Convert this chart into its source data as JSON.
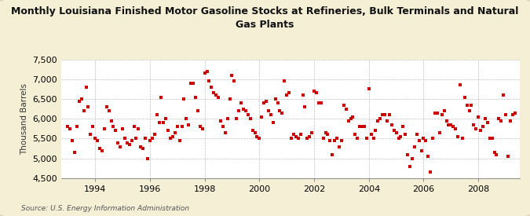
{
  "title": "Monthly Louisiana Finished Motor Gasoline Stocks at Refineries, Bulk Terminals and Natural\nGas Plants",
  "ylabel": "Thousand Barrels",
  "source": "Source: U.S. Energy Information Administration",
  "background_color": "#f5efd6",
  "plot_background_color": "#ffffff",
  "marker_color": "#cc0000",
  "ylim": [
    4500,
    7500
  ],
  "yticks": [
    4500,
    5000,
    5500,
    6000,
    6500,
    7000,
    7500
  ],
  "xlim_start": 1992.75,
  "xlim_end": 2009.5,
  "xtick_years": [
    1994,
    1996,
    1998,
    2000,
    2002,
    2004,
    2006,
    2008
  ],
  "data": [
    [
      1993.0,
      5800
    ],
    [
      1993.083,
      5750
    ],
    [
      1993.167,
      5450
    ],
    [
      1993.25,
      5150
    ],
    [
      1993.333,
      5800
    ],
    [
      1993.417,
      6450
    ],
    [
      1993.5,
      6500
    ],
    [
      1993.583,
      6200
    ],
    [
      1993.667,
      6800
    ],
    [
      1993.75,
      6300
    ],
    [
      1993.833,
      5600
    ],
    [
      1993.917,
      5800
    ],
    [
      1994.0,
      5500
    ],
    [
      1994.083,
      5450
    ],
    [
      1994.167,
      5250
    ],
    [
      1994.25,
      5200
    ],
    [
      1994.333,
      5750
    ],
    [
      1994.417,
      6300
    ],
    [
      1994.5,
      6200
    ],
    [
      1994.583,
      5950
    ],
    [
      1994.667,
      5800
    ],
    [
      1994.75,
      5700
    ],
    [
      1994.833,
      5400
    ],
    [
      1994.917,
      5300
    ],
    [
      1995.0,
      5750
    ],
    [
      1995.083,
      5500
    ],
    [
      1995.167,
      5400
    ],
    [
      1995.25,
      5350
    ],
    [
      1995.333,
      5450
    ],
    [
      1995.417,
      5800
    ],
    [
      1995.5,
      5500
    ],
    [
      1995.583,
      5750
    ],
    [
      1995.667,
      5300
    ],
    [
      1995.75,
      5250
    ],
    [
      1995.833,
      5500
    ],
    [
      1995.917,
      5000
    ],
    [
      1996.0,
      5450
    ],
    [
      1996.083,
      5500
    ],
    [
      1996.167,
      5600
    ],
    [
      1996.25,
      6100
    ],
    [
      1996.333,
      5900
    ],
    [
      1996.417,
      6550
    ],
    [
      1996.5,
      5900
    ],
    [
      1996.583,
      6000
    ],
    [
      1996.667,
      5700
    ],
    [
      1996.75,
      5500
    ],
    [
      1996.833,
      5550
    ],
    [
      1996.917,
      5650
    ],
    [
      1997.0,
      5800
    ],
    [
      1997.083,
      5450
    ],
    [
      1997.167,
      5800
    ],
    [
      1997.25,
      6500
    ],
    [
      1997.333,
      6000
    ],
    [
      1997.417,
      5850
    ],
    [
      1997.5,
      6900
    ],
    [
      1997.583,
      6900
    ],
    [
      1997.667,
      6550
    ],
    [
      1997.75,
      6200
    ],
    [
      1997.833,
      5800
    ],
    [
      1997.917,
      5750
    ],
    [
      1998.0,
      7150
    ],
    [
      1998.083,
      7200
    ],
    [
      1998.167,
      6950
    ],
    [
      1998.25,
      6800
    ],
    [
      1998.333,
      6650
    ],
    [
      1998.417,
      6600
    ],
    [
      1998.5,
      6550
    ],
    [
      1998.583,
      5950
    ],
    [
      1998.667,
      5800
    ],
    [
      1998.75,
      5650
    ],
    [
      1998.833,
      6000
    ],
    [
      1998.917,
      6500
    ],
    [
      1999.0,
      7100
    ],
    [
      1999.083,
      6950
    ],
    [
      1999.167,
      6000
    ],
    [
      1999.25,
      6200
    ],
    [
      1999.333,
      6400
    ],
    [
      1999.417,
      6250
    ],
    [
      1999.5,
      6200
    ],
    [
      1999.583,
      6100
    ],
    [
      1999.667,
      6000
    ],
    [
      1999.75,
      5700
    ],
    [
      1999.833,
      5650
    ],
    [
      1999.917,
      5550
    ],
    [
      2000.0,
      5500
    ],
    [
      2000.083,
      6050
    ],
    [
      2000.167,
      6400
    ],
    [
      2000.25,
      6450
    ],
    [
      2000.333,
      6200
    ],
    [
      2000.417,
      6100
    ],
    [
      2000.5,
      5900
    ],
    [
      2000.583,
      6500
    ],
    [
      2000.667,
      6400
    ],
    [
      2000.75,
      6200
    ],
    [
      2000.833,
      6150
    ],
    [
      2000.917,
      6950
    ],
    [
      2001.0,
      6600
    ],
    [
      2001.083,
      6650
    ],
    [
      2001.167,
      5500
    ],
    [
      2001.25,
      5600
    ],
    [
      2001.333,
      5550
    ],
    [
      2001.417,
      5500
    ],
    [
      2001.5,
      5600
    ],
    [
      2001.583,
      6600
    ],
    [
      2001.667,
      6300
    ],
    [
      2001.75,
      5500
    ],
    [
      2001.833,
      5550
    ],
    [
      2001.917,
      5650
    ],
    [
      2002.0,
      6700
    ],
    [
      2002.083,
      6650
    ],
    [
      2002.167,
      6400
    ],
    [
      2002.25,
      6400
    ],
    [
      2002.333,
      5500
    ],
    [
      2002.417,
      5650
    ],
    [
      2002.5,
      5600
    ],
    [
      2002.583,
      5450
    ],
    [
      2002.667,
      5100
    ],
    [
      2002.75,
      5450
    ],
    [
      2002.833,
      5500
    ],
    [
      2002.917,
      5300
    ],
    [
      2003.0,
      5450
    ],
    [
      2003.083,
      6350
    ],
    [
      2003.167,
      6250
    ],
    [
      2003.25,
      5950
    ],
    [
      2003.333,
      6000
    ],
    [
      2003.417,
      6050
    ],
    [
      2003.5,
      5600
    ],
    [
      2003.583,
      5500
    ],
    [
      2003.667,
      5800
    ],
    [
      2003.75,
      5800
    ],
    [
      2003.833,
      5800
    ],
    [
      2003.917,
      5500
    ],
    [
      2004.0,
      6750
    ],
    [
      2004.083,
      5600
    ],
    [
      2004.167,
      5500
    ],
    [
      2004.25,
      5700
    ],
    [
      2004.333,
      5950
    ],
    [
      2004.417,
      6000
    ],
    [
      2004.5,
      6100
    ],
    [
      2004.583,
      6100
    ],
    [
      2004.667,
      5950
    ],
    [
      2004.75,
      6100
    ],
    [
      2004.833,
      5850
    ],
    [
      2004.917,
      5700
    ],
    [
      2005.0,
      5650
    ],
    [
      2005.083,
      5500
    ],
    [
      2005.167,
      5550
    ],
    [
      2005.25,
      5800
    ],
    [
      2005.333,
      5600
    ],
    [
      2005.417,
      5100
    ],
    [
      2005.5,
      4800
    ],
    [
      2005.583,
      5000
    ],
    [
      2005.667,
      5300
    ],
    [
      2005.75,
      5600
    ],
    [
      2005.833,
      5450
    ],
    [
      2005.917,
      5200
    ],
    [
      2006.0,
      5500
    ],
    [
      2006.083,
      5450
    ],
    [
      2006.167,
      5050
    ],
    [
      2006.25,
      4650
    ],
    [
      2006.333,
      5500
    ],
    [
      2006.417,
      6150
    ],
    [
      2006.5,
      6150
    ],
    [
      2006.583,
      5650
    ],
    [
      2006.667,
      6100
    ],
    [
      2006.75,
      6200
    ],
    [
      2006.833,
      5950
    ],
    [
      2006.917,
      5850
    ],
    [
      2007.0,
      5850
    ],
    [
      2007.083,
      5800
    ],
    [
      2007.167,
      5750
    ],
    [
      2007.25,
      5550
    ],
    [
      2007.333,
      6850
    ],
    [
      2007.417,
      5500
    ],
    [
      2007.5,
      6550
    ],
    [
      2007.583,
      6350
    ],
    [
      2007.667,
      6200
    ],
    [
      2007.75,
      6350
    ],
    [
      2007.833,
      5850
    ],
    [
      2007.917,
      5750
    ],
    [
      2008.0,
      6050
    ],
    [
      2008.083,
      5700
    ],
    [
      2008.167,
      5800
    ],
    [
      2008.25,
      6000
    ],
    [
      2008.333,
      5900
    ],
    [
      2008.417,
      5500
    ],
    [
      2008.5,
      5500
    ],
    [
      2008.583,
      5150
    ],
    [
      2008.667,
      5100
    ],
    [
      2008.75,
      6000
    ],
    [
      2008.833,
      5950
    ],
    [
      2008.917,
      6600
    ],
    [
      2009.0,
      6100
    ],
    [
      2009.083,
      5050
    ],
    [
      2009.167,
      5950
    ],
    [
      2009.25,
      6100
    ],
    [
      2009.333,
      6150
    ]
  ]
}
